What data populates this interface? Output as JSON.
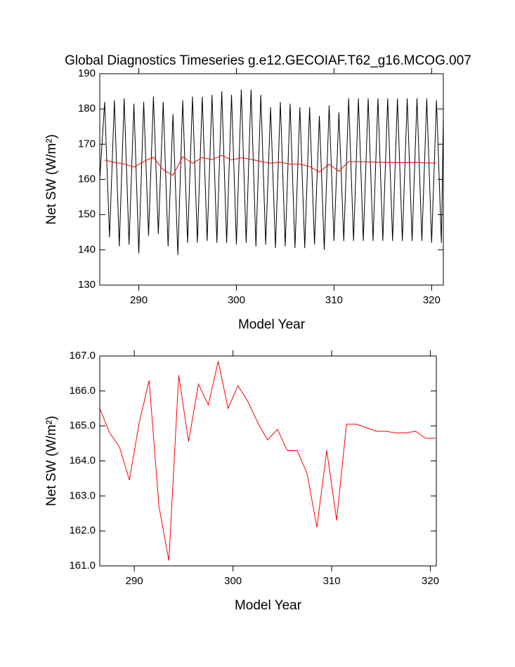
{
  "chart_data": [
    {
      "type": "line",
      "title": "Global Diagnostics Timeseries g.e12.GECOIAF.T62_g16.MCOG.007",
      "xlabel": "Model Year",
      "ylabel": "Net SW (W/m²)",
      "xlim": [
        286,
        321.2
      ],
      "ylim": [
        130,
        190
      ],
      "xticks": [
        290,
        300,
        310,
        320
      ],
      "yticks": [
        130,
        140,
        150,
        160,
        170,
        180,
        190
      ],
      "series": [
        {
          "color": "#000000",
          "x": [
            286,
            286.5,
            287,
            287.5,
            288,
            288.5,
            289,
            289.5,
            290,
            290.5,
            291,
            291.5,
            292,
            292.5,
            293,
            293.5,
            294,
            294.5,
            295,
            295.5,
            296,
            296.5,
            297,
            297.5,
            298,
            298.5,
            299,
            299.5,
            300,
            300.5,
            301,
            301.5,
            302,
            302.5,
            303,
            303.5,
            304,
            304.5,
            305,
            305.5,
            306,
            306.5,
            307,
            307.5,
            308,
            308.5,
            309,
            309.5,
            310,
            310.5,
            311,
            311.5,
            312,
            312.5,
            313,
            313.5,
            314,
            314.5,
            315,
            315.5,
            316,
            316.5,
            317,
            317.5,
            318,
            318.5,
            319,
            319.5,
            320,
            320.5,
            321,
            321.2
          ],
          "values": [
            160,
            182,
            143.5,
            182.5,
            141,
            183,
            141.5,
            181.5,
            139,
            182,
            144,
            183.5,
            144.5,
            182,
            141,
            178.5,
            138.5,
            182.5,
            142,
            183.5,
            142,
            183.5,
            142.5,
            184,
            142,
            185,
            142,
            184,
            141.5,
            185.5,
            142,
            185.5,
            141,
            184,
            141.5,
            180.5,
            140.5,
            182,
            141,
            181.5,
            140.5,
            180.5,
            140.5,
            180.5,
            141.5,
            178,
            140,
            181,
            142.5,
            179,
            142.5,
            183,
            142.5,
            183,
            142.5,
            183,
            142.5,
            183,
            142.5,
            183,
            142.5,
            183,
            142.5,
            183,
            142.5,
            183,
            142.5,
            183,
            142,
            182.5,
            142,
            178
          ]
        },
        {
          "color": "#ff0000",
          "x": [
            286.5,
            287.5,
            288.5,
            289.5,
            290.5,
            291.5,
            292.5,
            293.5,
            294.5,
            295.5,
            296.5,
            297.5,
            298.5,
            299.5,
            300.5,
            301.5,
            302.5,
            303.5,
            304.5,
            305.5,
            306.5,
            307.5,
            308.5,
            309.5,
            310.5,
            311.5,
            312.5,
            313.5,
            314.5,
            315.5,
            316.5,
            317.5,
            318.5,
            319.5,
            320.5
          ],
          "values": [
            165.5,
            164.8,
            164.4,
            163.45,
            165.1,
            166.3,
            162.7,
            161.15,
            166.45,
            164.55,
            166.2,
            165.6,
            166.85,
            165.5,
            166.15,
            165.7,
            165.1,
            164.6,
            164.9,
            164.3,
            164.3,
            163.65,
            162.1,
            164.3,
            162.3,
            165.05,
            165.05,
            164.95,
            164.85,
            164.85,
            164.8,
            164.8,
            164.85,
            164.65,
            164.65
          ]
        }
      ]
    },
    {
      "type": "line",
      "xlabel": "Model Year",
      "ylabel": "Net SW (W/m²)",
      "xlim": [
        286.5,
        320.6
      ],
      "ylim": [
        161,
        167
      ],
      "xticks": [
        290,
        300,
        310,
        320
      ],
      "yticks": [
        {
          "value": 161,
          "label": "161.0"
        },
        {
          "value": 162,
          "label": "162.0"
        },
        {
          "value": 163,
          "label": "163.0"
        },
        {
          "value": 164,
          "label": "164.0"
        },
        {
          "value": 165,
          "label": "165.0"
        },
        {
          "value": 166,
          "label": "166.0"
        },
        {
          "value": 167,
          "label": "167.0"
        }
      ],
      "series": [
        {
          "color": "#ff0000",
          "x": [
            286.5,
            287.5,
            288.5,
            289.5,
            290.5,
            291.5,
            292.5,
            293.5,
            294.5,
            295.5,
            296.5,
            297.5,
            298.5,
            299.5,
            300.5,
            301.5,
            302.5,
            303.5,
            304.5,
            305.5,
            306.5,
            307.5,
            308.5,
            309.5,
            310.5,
            311.5,
            312.5,
            313.5,
            314.5,
            315.5,
            316.5,
            317.5,
            318.5,
            319.5,
            320.5
          ],
          "values": [
            165.5,
            164.8,
            164.4,
            163.45,
            165.1,
            166.3,
            162.7,
            161.15,
            166.45,
            164.55,
            166.2,
            165.6,
            166.85,
            165.5,
            166.15,
            165.7,
            165.1,
            164.6,
            164.9,
            164.3,
            164.3,
            163.65,
            162.1,
            164.3,
            162.3,
            165.05,
            165.05,
            164.95,
            164.85,
            164.85,
            164.8,
            164.8,
            164.85,
            164.65,
            164.65
          ]
        }
      ]
    }
  ]
}
